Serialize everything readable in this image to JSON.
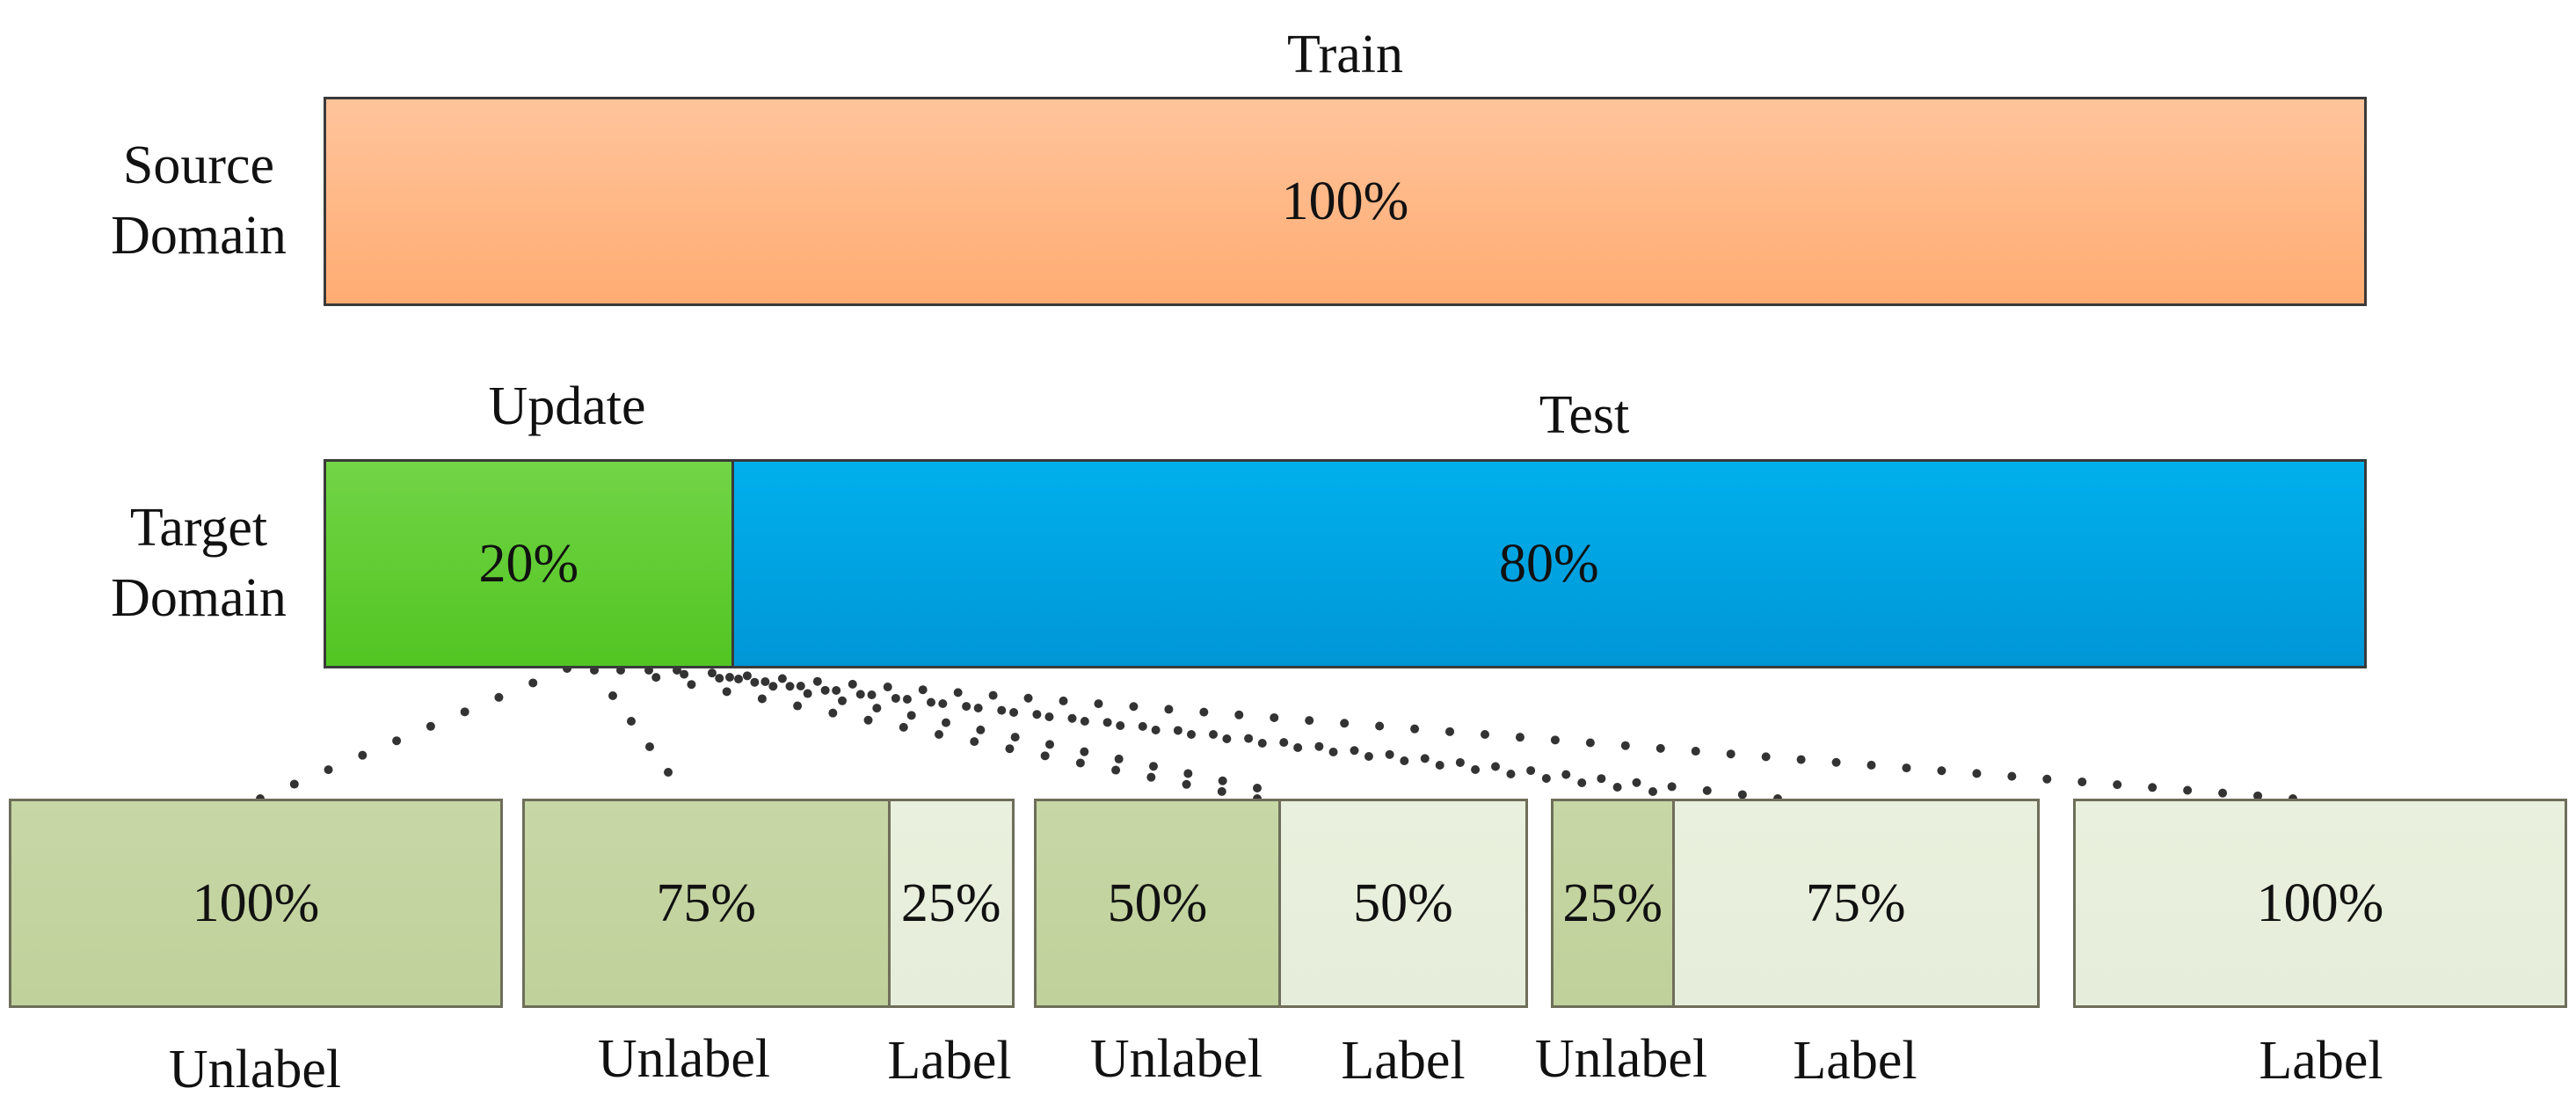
{
  "source": {
    "label_line1": "Source",
    "label_line2": "Domain",
    "train_label": "Train",
    "value": "100%",
    "color": "#ffb27e"
  },
  "target": {
    "label_line1": "Target",
    "label_line2": "Domain",
    "update_label": "Update",
    "test_label": "Test",
    "update_value": "20%",
    "test_value": "80%",
    "update_fraction": 0.2,
    "test_fraction": 0.8,
    "update_color": "#5ccf2e",
    "test_color": "#00a6e4"
  },
  "splits": [
    {
      "unlabel_value": "100%",
      "label_value": "",
      "unlabel_fraction": 1.0,
      "unlabel_caption": "Unlabel",
      "label_caption": ""
    },
    {
      "unlabel_value": "75%",
      "label_value": "25%",
      "unlabel_fraction": 0.75,
      "unlabel_caption": "Unlabel",
      "label_caption": "Label"
    },
    {
      "unlabel_value": "50%",
      "label_value": "50%",
      "unlabel_fraction": 0.5,
      "unlabel_caption": "Unlabel",
      "label_caption": "Label"
    },
    {
      "unlabel_value": "25%",
      "label_value": "75%",
      "unlabel_fraction": 0.25,
      "unlabel_caption": "Unlabel",
      "label_caption": "Label"
    },
    {
      "unlabel_value": "",
      "label_value": "100%",
      "unlabel_fraction": 0.0,
      "unlabel_caption": "",
      "label_caption": "Label"
    }
  ],
  "colors": {
    "unlabel": "#c7d7a6",
    "label": "#e6eedb",
    "dots": "#333333"
  }
}
